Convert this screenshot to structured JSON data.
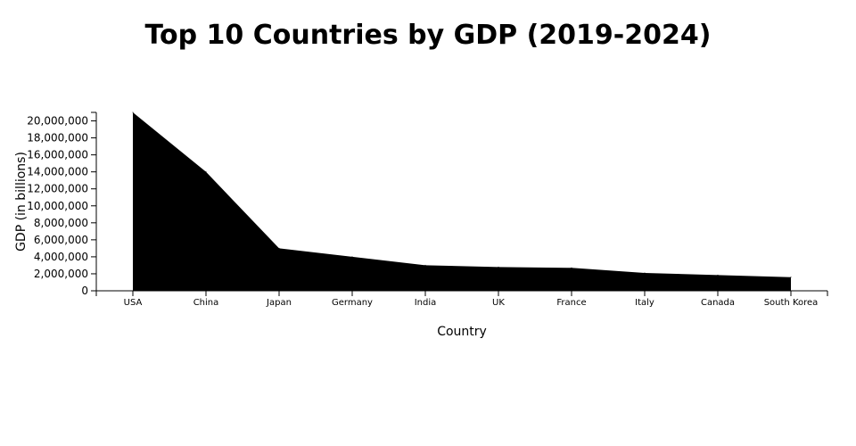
{
  "chart_data": {
    "type": "area",
    "title": "Top 10 Countries by GDP (2019-2024)",
    "xlabel": "Country",
    "ylabel": "GDP (in billions)",
    "categories": [
      "USA",
      "China",
      "Japan",
      "Germany",
      "India",
      "UK",
      "France",
      "Italy",
      "Canada",
      "South Korea"
    ],
    "values": [
      21000000,
      14000000,
      5000000,
      4000000,
      3000000,
      2800000,
      2700000,
      2100000,
      1850000,
      1600000
    ],
    "ylim": [
      0,
      21000000
    ],
    "yticks": [
      0,
      2000000,
      4000000,
      6000000,
      8000000,
      10000000,
      12000000,
      14000000,
      16000000,
      18000000,
      20000000
    ],
    "yticks_labels": [
      "0",
      "2,000,000",
      "4,000,000",
      "6,000,000",
      "8,000,000",
      "10,000,000",
      "12,000,000",
      "14,000,000",
      "16,000,000",
      "18,000,000",
      "20,000,000"
    ],
    "grid": false,
    "legend": "none",
    "fill_color": "#000000"
  }
}
